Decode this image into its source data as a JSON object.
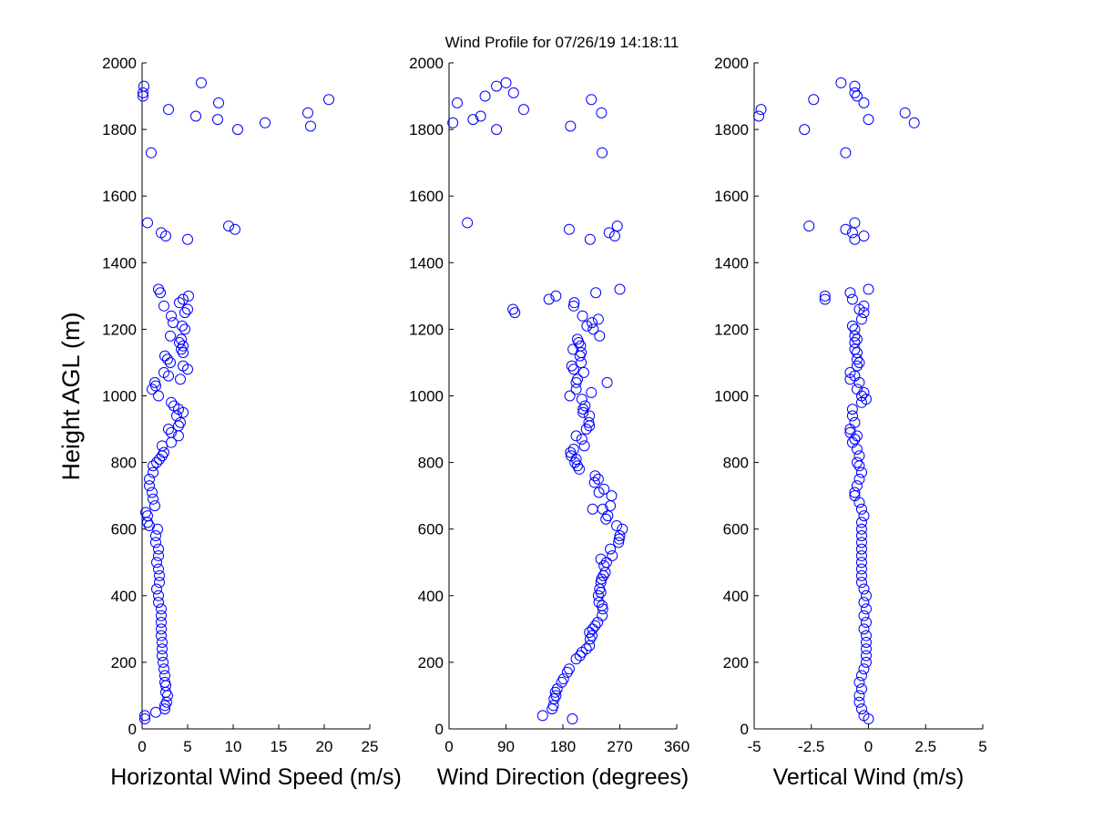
{
  "figure": {
    "title": "Wind Profile for  07/26/19 14:18:11",
    "ylabel": "Height AGL (m)",
    "marker_color": "#0000ff"
  },
  "chart_data": [
    {
      "type": "scatter",
      "xlabel": "Horizontal Wind Speed (m/s)",
      "ylabel": "Height AGL (m)",
      "xlim": [
        0,
        25
      ],
      "ylim": [
        0,
        2000
      ],
      "xticks": [
        0,
        5,
        10,
        15,
        20,
        25
      ],
      "xtick_labels": [
        "0",
        "5",
        "10",
        "15",
        "20",
        "25"
      ],
      "yticks": [
        0,
        200,
        400,
        600,
        800,
        1000,
        1200,
        1400,
        1600,
        1800,
        2000
      ],
      "ytick_labels": [
        "0",
        "200",
        "400",
        "600",
        "800",
        "1000",
        "1200",
        "1400",
        "1600",
        "1800",
        "2000"
      ],
      "grid": false,
      "points": [
        [
          0.3,
          30
        ],
        [
          1.5,
          50
        ],
        [
          0.3,
          40
        ],
        [
          2.5,
          60
        ],
        [
          2.5,
          70
        ],
        [
          2.7,
          80
        ],
        [
          2.8,
          100
        ],
        [
          2.6,
          110
        ],
        [
          2.6,
          130
        ],
        [
          2.5,
          140
        ],
        [
          2.5,
          160
        ],
        [
          2.4,
          180
        ],
        [
          2.3,
          200
        ],
        [
          2.2,
          220
        ],
        [
          2.2,
          240
        ],
        [
          2.2,
          260
        ],
        [
          2.1,
          280
        ],
        [
          2.1,
          300
        ],
        [
          2.1,
          320
        ],
        [
          2.1,
          340
        ],
        [
          2.1,
          360
        ],
        [
          1.8,
          380
        ],
        [
          1.8,
          400
        ],
        [
          1.6,
          420
        ],
        [
          1.9,
          440
        ],
        [
          1.9,
          460
        ],
        [
          1.8,
          480
        ],
        [
          1.6,
          500
        ],
        [
          1.8,
          520
        ],
        [
          1.8,
          540
        ],
        [
          1.5,
          560
        ],
        [
          1.5,
          580
        ],
        [
          1.7,
          600
        ],
        [
          0.8,
          610
        ],
        [
          0.6,
          620
        ],
        [
          0.6,
          640
        ],
        [
          0.4,
          650
        ],
        [
          1.4,
          670
        ],
        [
          1.2,
          690
        ],
        [
          1.1,
          710
        ],
        [
          0.8,
          730
        ],
        [
          0.8,
          750
        ],
        [
          1.2,
          770
        ],
        [
          1.2,
          790
        ],
        [
          1.6,
          800
        ],
        [
          1.9,
          810
        ],
        [
          2.2,
          820
        ],
        [
          2.4,
          830
        ],
        [
          2.2,
          850
        ],
        [
          3.2,
          860
        ],
        [
          4.0,
          880
        ],
        [
          3.2,
          890
        ],
        [
          2.9,
          900
        ],
        [
          4.0,
          910
        ],
        [
          4.2,
          920
        ],
        [
          3.8,
          940
        ],
        [
          4.5,
          950
        ],
        [
          4.0,
          960
        ],
        [
          3.5,
          970
        ],
        [
          3.2,
          980
        ],
        [
          1.8,
          1000
        ],
        [
          1.1,
          1020
        ],
        [
          1.5,
          1030
        ],
        [
          1.4,
          1040
        ],
        [
          4.2,
          1050
        ],
        [
          2.9,
          1060
        ],
        [
          2.4,
          1070
        ],
        [
          5.0,
          1080
        ],
        [
          4.5,
          1090
        ],
        [
          3.1,
          1100
        ],
        [
          2.8,
          1110
        ],
        [
          2.5,
          1120
        ],
        [
          4.5,
          1130
        ],
        [
          4.3,
          1140
        ],
        [
          4.5,
          1150
        ],
        [
          4.1,
          1160
        ],
        [
          4.3,
          1170
        ],
        [
          3.1,
          1180
        ],
        [
          4.7,
          1200
        ],
        [
          4.4,
          1210
        ],
        [
          3.4,
          1220
        ],
        [
          3.2,
          1240
        ],
        [
          4.7,
          1250
        ],
        [
          5.0,
          1260
        ],
        [
          2.4,
          1270
        ],
        [
          4.1,
          1280
        ],
        [
          4.5,
          1290
        ],
        [
          5.1,
          1300
        ],
        [
          2.0,
          1310
        ],
        [
          1.8,
          1320
        ],
        [
          5.0,
          1470
        ],
        [
          2.6,
          1480
        ],
        [
          2.1,
          1490
        ],
        [
          10.2,
          1500
        ],
        [
          9.5,
          1510
        ],
        [
          0.6,
          1520
        ],
        [
          1.0,
          1730
        ],
        [
          10.5,
          1800
        ],
        [
          18.5,
          1810
        ],
        [
          13.5,
          1820
        ],
        [
          8.3,
          1830
        ],
        [
          5.9,
          1840
        ],
        [
          18.2,
          1850
        ],
        [
          2.9,
          1860
        ],
        [
          8.4,
          1880
        ],
        [
          20.5,
          1890
        ],
        [
          0.1,
          1900
        ],
        [
          0.1,
          1910
        ],
        [
          0.2,
          1930
        ],
        [
          6.5,
          1940
        ]
      ]
    },
    {
      "type": "scatter",
      "xlabel": "Wind Direction (degrees)",
      "ylabel": "",
      "xlim": [
        0,
        360
      ],
      "ylim": [
        0,
        2000
      ],
      "xticks": [
        0,
        90,
        180,
        270,
        360
      ],
      "xtick_labels": [
        "0",
        "90",
        "180",
        "270",
        "360"
      ],
      "yticks": [
        0,
        200,
        400,
        600,
        800,
        1000,
        1200,
        1400,
        1600,
        1800,
        2000
      ],
      "ytick_labels": [
        "0",
        "200",
        "400",
        "600",
        "800",
        "1000",
        "1200",
        "1400",
        "1600",
        "1800",
        "2000"
      ],
      "grid": false,
      "points": [
        [
          195,
          30
        ],
        [
          148,
          40
        ],
        [
          163,
          60
        ],
        [
          165,
          70
        ],
        [
          166,
          90
        ],
        [
          169,
          100
        ],
        [
          168,
          110
        ],
        [
          171,
          120
        ],
        [
          178,
          140
        ],
        [
          181,
          150
        ],
        [
          187,
          170
        ],
        [
          190,
          180
        ],
        [
          201,
          210
        ],
        [
          207,
          220
        ],
        [
          210,
          230
        ],
        [
          217,
          240
        ],
        [
          222,
          250
        ],
        [
          223,
          270
        ],
        [
          226,
          280
        ],
        [
          222,
          290
        ],
        [
          227,
          300
        ],
        [
          231,
          310
        ],
        [
          235,
          320
        ],
        [
          242,
          340
        ],
        [
          243,
          360
        ],
        [
          242,
          370
        ],
        [
          237,
          380
        ],
        [
          236,
          400
        ],
        [
          240,
          410
        ],
        [
          238,
          420
        ],
        [
          240,
          440
        ],
        [
          241,
          450
        ],
        [
          244,
          460
        ],
        [
          247,
          470
        ],
        [
          245,
          490
        ],
        [
          249,
          500
        ],
        [
          240,
          510
        ],
        [
          258,
          520
        ],
        [
          255,
          540
        ],
        [
          268,
          560
        ],
        [
          269,
          570
        ],
        [
          270,
          580
        ],
        [
          274,
          600
        ],
        [
          265,
          610
        ],
        [
          248,
          630
        ],
        [
          251,
          640
        ],
        [
          243,
          660
        ],
        [
          227,
          660
        ],
        [
          255,
          670
        ],
        [
          257,
          700
        ],
        [
          237,
          710
        ],
        [
          245,
          720
        ],
        [
          230,
          740
        ],
        [
          236,
          750
        ],
        [
          231,
          760
        ],
        [
          206,
          780
        ],
        [
          203,
          790
        ],
        [
          199,
          800
        ],
        [
          201,
          810
        ],
        [
          193,
          820
        ],
        [
          192,
          830
        ],
        [
          197,
          840
        ],
        [
          214,
          850
        ],
        [
          210,
          870
        ],
        [
          201,
          880
        ],
        [
          217,
          900
        ],
        [
          222,
          910
        ],
        [
          221,
          920
        ],
        [
          222,
          940
        ],
        [
          212,
          950
        ],
        [
          212,
          960
        ],
        [
          215,
          970
        ],
        [
          210,
          990
        ],
        [
          191,
          1000
        ],
        [
          225,
          1010
        ],
        [
          201,
          1020
        ],
        [
          201,
          1040
        ],
        [
          250,
          1040
        ],
        [
          203,
          1050
        ],
        [
          213,
          1070
        ],
        [
          197,
          1080
        ],
        [
          194,
          1090
        ],
        [
          209,
          1100
        ],
        [
          207,
          1120
        ],
        [
          209,
          1130
        ],
        [
          196,
          1140
        ],
        [
          208,
          1150
        ],
        [
          205,
          1160
        ],
        [
          203,
          1170
        ],
        [
          238,
          1180
        ],
        [
          228,
          1200
        ],
        [
          218,
          1210
        ],
        [
          226,
          1220
        ],
        [
          236,
          1230
        ],
        [
          211,
          1240
        ],
        [
          104,
          1250
        ],
        [
          101,
          1260
        ],
        [
          197,
          1270
        ],
        [
          198,
          1280
        ],
        [
          158,
          1290
        ],
        [
          169,
          1300
        ],
        [
          232,
          1310
        ],
        [
          270,
          1320
        ],
        [
          223,
          1470
        ],
        [
          262,
          1480
        ],
        [
          253,
          1490
        ],
        [
          190,
          1500
        ],
        [
          266,
          1510
        ],
        [
          29,
          1520
        ],
        [
          242,
          1730
        ],
        [
          75,
          1800
        ],
        [
          192,
          1810
        ],
        [
          6,
          1820
        ],
        [
          38,
          1830
        ],
        [
          50,
          1840
        ],
        [
          241,
          1850
        ],
        [
          118,
          1860
        ],
        [
          13,
          1880
        ],
        [
          225,
          1890
        ],
        [
          57,
          1900
        ],
        [
          102,
          1910
        ],
        [
          75,
          1930
        ],
        [
          90,
          1940
        ]
      ]
    },
    {
      "type": "scatter",
      "xlabel": "Vertical Wind (m/s)",
      "ylabel": "",
      "xlim": [
        -5,
        5
      ],
      "ylim": [
        0,
        2000
      ],
      "xticks": [
        -5,
        -2.5,
        0,
        2.5,
        5
      ],
      "xtick_labels": [
        "-5",
        "-2.5",
        "0",
        "2.5",
        "5"
      ],
      "yticks": [
        0,
        200,
        400,
        600,
        800,
        1000,
        1200,
        1400,
        1600,
        1800,
        2000
      ],
      "ytick_labels": [
        "0",
        "200",
        "400",
        "600",
        "800",
        "1000",
        "1200",
        "1400",
        "1600",
        "1800",
        "2000"
      ],
      "grid": false,
      "points": [
        [
          0.0,
          30
        ],
        [
          -0.2,
          40
        ],
        [
          -0.3,
          60
        ],
        [
          -0.4,
          80
        ],
        [
          -0.4,
          100
        ],
        [
          -0.3,
          120
        ],
        [
          -0.4,
          140
        ],
        [
          -0.3,
          160
        ],
        [
          -0.2,
          180
        ],
        [
          -0.1,
          200
        ],
        [
          -0.1,
          220
        ],
        [
          -0.1,
          240
        ],
        [
          -0.1,
          260
        ],
        [
          -0.1,
          280
        ],
        [
          -0.2,
          300
        ],
        [
          -0.1,
          320
        ],
        [
          -0.2,
          340
        ],
        [
          -0.1,
          360
        ],
        [
          -0.2,
          380
        ],
        [
          -0.1,
          400
        ],
        [
          -0.2,
          420
        ],
        [
          -0.3,
          440
        ],
        [
          -0.3,
          460
        ],
        [
          -0.3,
          480
        ],
        [
          -0.3,
          500
        ],
        [
          -0.3,
          520
        ],
        [
          -0.3,
          540
        ],
        [
          -0.3,
          560
        ],
        [
          -0.3,
          580
        ],
        [
          -0.3,
          600
        ],
        [
          -0.3,
          620
        ],
        [
          -0.2,
          640
        ],
        [
          -0.3,
          660
        ],
        [
          -0.4,
          680
        ],
        [
          -0.6,
          700
        ],
        [
          -0.6,
          710
        ],
        [
          -0.5,
          730
        ],
        [
          -0.4,
          750
        ],
        [
          -0.3,
          770
        ],
        [
          -0.4,
          790
        ],
        [
          -0.5,
          800
        ],
        [
          -0.4,
          820
        ],
        [
          -0.5,
          840
        ],
        [
          -0.7,
          860
        ],
        [
          -0.6,
          870
        ],
        [
          -0.5,
          880
        ],
        [
          -0.8,
          890
        ],
        [
          -0.8,
          900
        ],
        [
          -0.6,
          920
        ],
        [
          -0.7,
          940
        ],
        [
          -0.7,
          960
        ],
        [
          -0.3,
          980
        ],
        [
          -0.1,
          990
        ],
        [
          -0.3,
          1000
        ],
        [
          -0.2,
          1010
        ],
        [
          -0.5,
          1020
        ],
        [
          -0.4,
          1040
        ],
        [
          -0.8,
          1050
        ],
        [
          -0.6,
          1060
        ],
        [
          -0.8,
          1070
        ],
        [
          -0.5,
          1090
        ],
        [
          -0.4,
          1100
        ],
        [
          -0.5,
          1110
        ],
        [
          -0.5,
          1130
        ],
        [
          -0.6,
          1140
        ],
        [
          -0.6,
          1160
        ],
        [
          -0.5,
          1170
        ],
        [
          -0.6,
          1180
        ],
        [
          -0.6,
          1200
        ],
        [
          -0.7,
          1210
        ],
        [
          -0.3,
          1230
        ],
        [
          -0.2,
          1250
        ],
        [
          -0.4,
          1260
        ],
        [
          -0.2,
          1270
        ],
        [
          -0.7,
          1290
        ],
        [
          -1.9,
          1290
        ],
        [
          -1.9,
          1300
        ],
        [
          -0.8,
          1310
        ],
        [
          0.0,
          1320
        ],
        [
          -0.6,
          1470
        ],
        [
          -0.2,
          1480
        ],
        [
          -0.7,
          1490
        ],
        [
          -1.0,
          1500
        ],
        [
          -2.6,
          1510
        ],
        [
          -0.6,
          1520
        ],
        [
          -1.0,
          1730
        ],
        [
          -2.8,
          1800
        ],
        [
          2.0,
          1820
        ],
        [
          0.0,
          1830
        ],
        [
          -4.8,
          1840
        ],
        [
          1.6,
          1850
        ],
        [
          -4.7,
          1860
        ],
        [
          -0.2,
          1880
        ],
        [
          -2.4,
          1890
        ],
        [
          -0.5,
          1900
        ],
        [
          -0.6,
          1910
        ],
        [
          -0.6,
          1930
        ],
        [
          -1.2,
          1940
        ]
      ]
    }
  ]
}
